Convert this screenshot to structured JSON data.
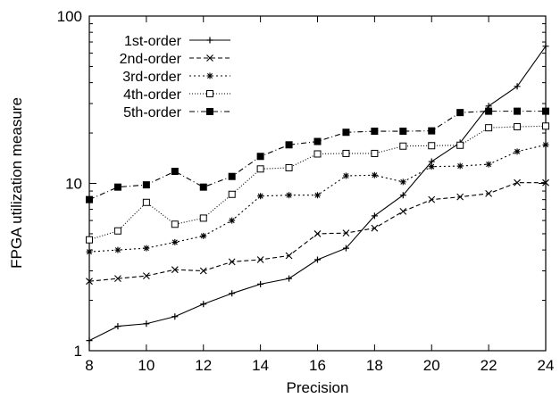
{
  "chart_data": {
    "type": "line",
    "xlabel": "Precision",
    "ylabel": "FPGA utilization measure",
    "xlim": [
      8,
      24
    ],
    "ylim": [
      1,
      100
    ],
    "y_scale": "log",
    "x_ticks": [
      8,
      10,
      12,
      14,
      16,
      18,
      20,
      22,
      24
    ],
    "x_tick_labels": [
      "8",
      "10",
      "12",
      "14",
      "16",
      "18",
      "20",
      "22",
      "24"
    ],
    "y_ticks": [
      1,
      10,
      100
    ],
    "y_tick_labels": [
      "1",
      "10",
      "100"
    ],
    "grid": false,
    "legend_position": "top-left",
    "x": [
      8,
      9,
      10,
      11,
      12,
      13,
      14,
      15,
      16,
      17,
      18,
      19,
      20,
      21,
      22,
      23,
      24
    ],
    "series": [
      {
        "name": "1st-order",
        "marker": "plus",
        "dash": "solid",
        "values": [
          1.15,
          1.4,
          1.45,
          1.6,
          1.9,
          2.2,
          2.5,
          2.7,
          3.5,
          4.1,
          6.4,
          8.5,
          13.5,
          17.5,
          29,
          38,
          66
        ]
      },
      {
        "name": "2nd-order",
        "marker": "cross",
        "dash": "dashed",
        "values": [
          2.6,
          2.7,
          2.8,
          3.05,
          3.0,
          3.4,
          3.5,
          3.7,
          5.0,
          5.05,
          5.4,
          6.8,
          8.0,
          8.3,
          8.7,
          10.1,
          10.1
        ]
      },
      {
        "name": "3rd-order",
        "marker": "star",
        "dash": "dotted",
        "values": [
          3.9,
          4.0,
          4.1,
          4.45,
          4.85,
          6.0,
          8.4,
          8.5,
          8.5,
          11.1,
          11.2,
          10.2,
          12.6,
          12.7,
          13.0,
          15.5,
          17.0
        ]
      },
      {
        "name": "4th-order",
        "marker": "open-square",
        "dash": "fine-dotted",
        "values": [
          4.6,
          5.2,
          7.7,
          5.7,
          6.2,
          8.6,
          12.2,
          12.4,
          15.0,
          15.1,
          15.1,
          16.7,
          16.8,
          16.9,
          21.5,
          21.8,
          22.0
        ]
      },
      {
        "name": "5th-order",
        "marker": "filled-square",
        "dash": "dash-dot",
        "values": [
          8.0,
          9.5,
          9.8,
          11.8,
          9.5,
          11.0,
          14.5,
          17.0,
          17.8,
          20.2,
          20.5,
          20.5,
          20.6,
          26.5,
          27.0,
          27.0,
          27.0
        ]
      }
    ]
  }
}
